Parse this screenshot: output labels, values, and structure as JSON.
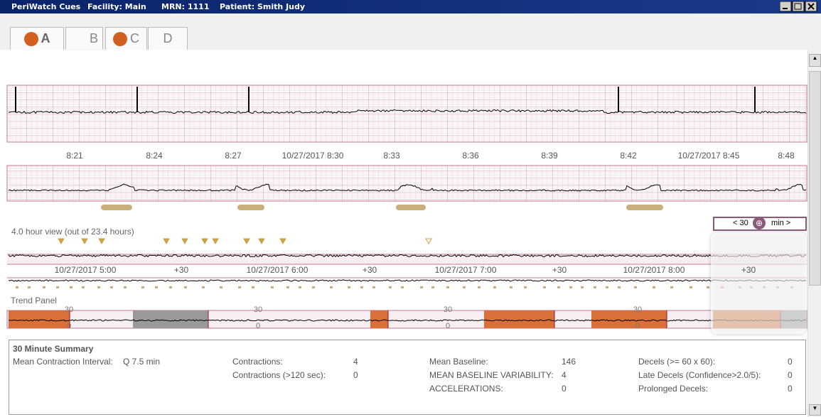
{
  "title_bar": {
    "app": "PeriWatch Cues",
    "facility": "Facility: Main",
    "mrn": "MRN: 1111",
    "patient": "Patient: Smith Judy"
  },
  "tabs": [
    "A",
    "B",
    "C",
    "D"
  ],
  "strip_times": [
    "8:21",
    "8:24",
    "8:27",
    "10/27/2017 8:30",
    "8:33",
    "8:36",
    "8:39",
    "8:42",
    "10/27/2017 8:45",
    "8:48"
  ],
  "overview": {
    "caption": "4.0 hour view (out of 23.4 hours)",
    "zoom_less": "< 30",
    "zoom_more": "min >",
    "times": [
      "10/27/2017 5:00",
      "+30",
      "10/27/2017 6:00",
      "+30",
      "10/27/2017 7:00",
      "+30",
      "10/27/2017 8:00",
      "+30"
    ]
  },
  "trend": {
    "title": "Trend Panel",
    "scale_labels": [
      {
        "high": "30",
        "low": "0"
      },
      {
        "high": "30",
        "low": "0"
      },
      {
        "high": "30",
        "low": "0"
      },
      {
        "high": "30",
        "low": "0"
      }
    ]
  },
  "summary": {
    "title": "30 Minute Summary",
    "columns": [
      [
        {
          "label": "Mean Contraction Interval:",
          "value": "Q 7.5 min"
        }
      ],
      [
        {
          "label": "Contractions:",
          "value": 4
        },
        {
          "label": "Contractions (>120 sec):",
          "value": 0
        }
      ],
      [
        {
          "label": "Mean Baseline:",
          "value": 146
        },
        {
          "label": "MEAN BASELINE VARIABILITY:",
          "value": 4
        },
        {
          "label": "ACCELERATIONS:",
          "value": 0
        }
      ],
      [
        {
          "label": "Decels (>= 60 x 60):",
          "value": 0
        },
        {
          "label": "Late Decels (Confidence>2.0/5):",
          "value": 0
        },
        {
          "label": "Prolonged Decels:",
          "value": 0
        }
      ]
    ]
  }
}
